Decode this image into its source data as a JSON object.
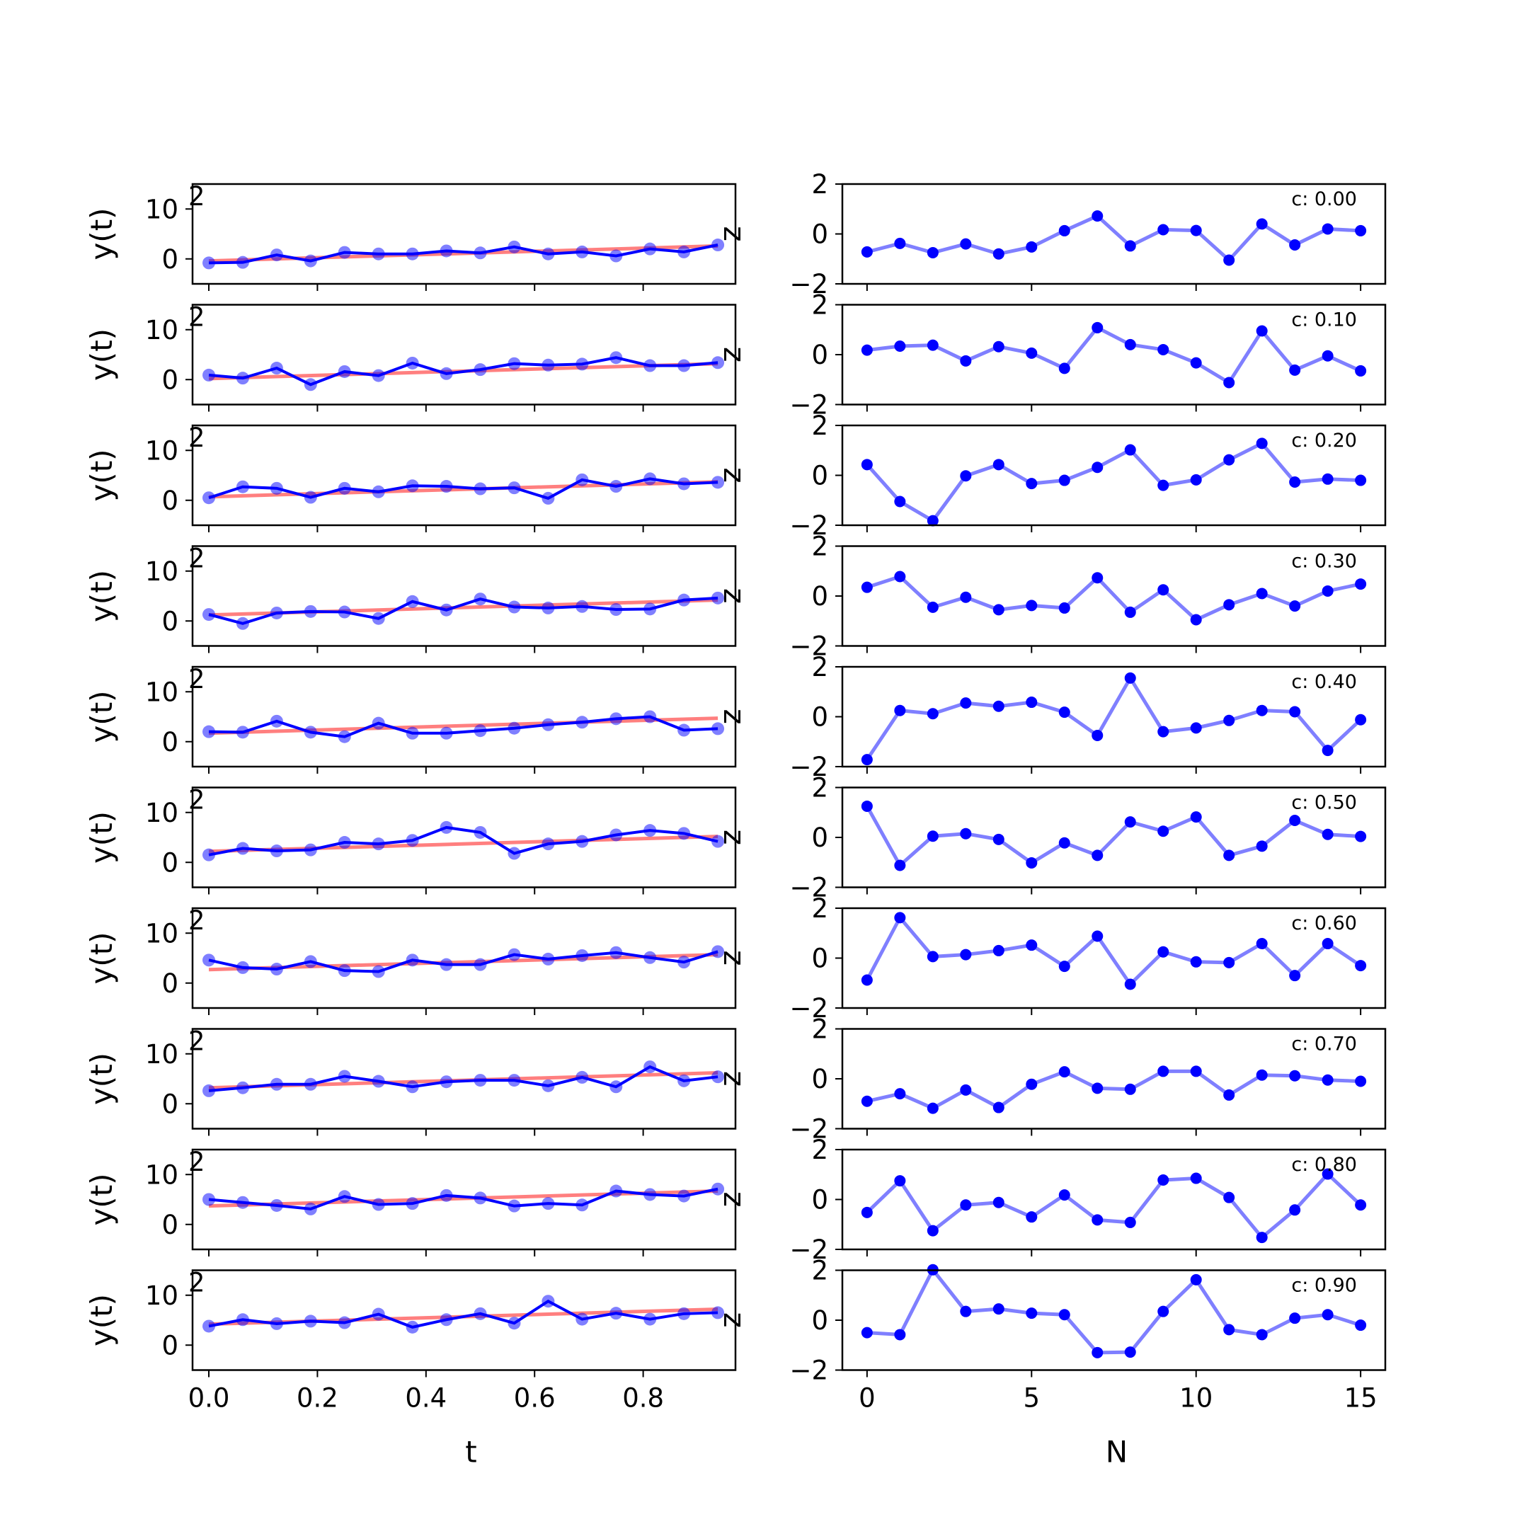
{
  "chart_data": {
    "type": "line",
    "layout": "10 rows x 2 columns of subplots",
    "colors": {
      "signal": "#0000ff",
      "trend": "#ff0000",
      "noise": "#0000ff"
    },
    "left_column": {
      "xlabel": "t",
      "ylabel": "y(t)",
      "xlim": [
        -0.03,
        0.97
      ],
      "ylim": [
        -5,
        15
      ],
      "xticks": [
        0.0,
        0.2,
        0.4,
        0.6,
        0.8
      ],
      "xtick_labels": [
        "0.0",
        "0.2",
        "0.4",
        "0.6",
        "0.8"
      ],
      "yticks": [
        0,
        10
      ],
      "ytick_labels": [
        "0",
        "10"
      ],
      "t": [
        0,
        0.0625,
        0.125,
        0.1875,
        0.25,
        0.3125,
        0.375,
        0.4375,
        0.5,
        0.5625,
        0.625,
        0.6875,
        0.75,
        0.8125,
        0.875,
        0.9375
      ],
      "right_axis_tick_label": "2",
      "series": [
        {
          "trend": [
            -0.4,
            2.6
          ],
          "values": [
            -0.8,
            -0.7,
            0.8,
            -0.4,
            1.3,
            1.0,
            1.0,
            1.6,
            1.2,
            2.4,
            1.0,
            1.4,
            0.6,
            2.0,
            1.4,
            2.8
          ]
        },
        {
          "trend": [
            0.2,
            3.2
          ],
          "values": [
            0.9,
            0.3,
            2.3,
            -1.0,
            1.6,
            0.8,
            3.3,
            1.2,
            2.0,
            3.2,
            2.9,
            3.1,
            4.4,
            2.8,
            2.8,
            3.4
          ]
        },
        {
          "trend": [
            0.7,
            3.7
          ],
          "values": [
            0.5,
            2.7,
            2.4,
            0.6,
            2.4,
            1.7,
            2.9,
            2.8,
            2.3,
            2.5,
            0.4,
            4.1,
            2.8,
            4.3,
            3.3,
            3.6
          ]
        },
        {
          "trend": [
            1.2,
            4.2
          ],
          "values": [
            1.3,
            -0.5,
            1.6,
            1.9,
            1.8,
            0.5,
            3.9,
            2.2,
            4.4,
            2.8,
            2.6,
            2.9,
            2.3,
            2.4,
            4.2,
            4.6
          ]
        },
        {
          "trend": [
            1.7,
            4.7
          ],
          "values": [
            2.0,
            1.9,
            4.1,
            1.9,
            1.0,
            3.7,
            1.7,
            1.7,
            2.2,
            2.7,
            3.4,
            3.9,
            4.6,
            5.0,
            2.3,
            2.6
          ]
        },
        {
          "trend": [
            2.2,
            5.2
          ],
          "values": [
            1.5,
            2.8,
            2.3,
            2.5,
            4.0,
            3.7,
            4.4,
            7.0,
            6.0,
            1.8,
            3.7,
            4.2,
            5.5,
            6.4,
            5.8,
            4.2
          ]
        },
        {
          "trend": [
            2.7,
            5.7
          ],
          "values": [
            4.6,
            3.1,
            2.8,
            4.3,
            2.5,
            2.3,
            4.6,
            3.7,
            3.7,
            5.7,
            4.8,
            5.5,
            6.1,
            5.1,
            4.2,
            6.3
          ]
        },
        {
          "trend": [
            3.2,
            6.2
          ],
          "values": [
            2.6,
            3.2,
            3.9,
            3.9,
            5.5,
            4.5,
            3.4,
            4.4,
            4.7,
            4.7,
            3.6,
            5.3,
            3.4,
            7.4,
            4.6,
            5.4
          ]
        },
        {
          "trend": [
            3.7,
            6.7
          ],
          "values": [
            5.0,
            4.4,
            3.8,
            3.1,
            5.6,
            4.0,
            4.2,
            5.8,
            5.3,
            3.7,
            4.2,
            3.9,
            6.7,
            6.0,
            5.7,
            7.1
          ]
        },
        {
          "trend": [
            4.2,
            7.2
          ],
          "values": [
            3.8,
            5.1,
            4.3,
            4.8,
            4.5,
            6.2,
            3.6,
            5.1,
            6.3,
            4.4,
            8.8,
            5.2,
            6.4,
            5.2,
            6.3,
            6.5
          ]
        }
      ]
    },
    "right_column": {
      "xlabel": "N",
      "ylabel": "z",
      "xlim": [
        -0.75,
        15.75
      ],
      "ylim": [
        -2,
        2
      ],
      "xticks": [
        0,
        5,
        10,
        15
      ],
      "xtick_labels": [
        "0",
        "5",
        "10",
        "15"
      ],
      "yticks": [
        -2,
        0,
        2
      ],
      "ytick_labels": [
        "−2",
        "0",
        "2"
      ],
      "n": [
        0,
        1,
        2,
        3,
        4,
        5,
        6,
        7,
        8,
        9,
        10,
        11,
        12,
        13,
        14,
        15
      ],
      "series": [
        {
          "label": "c: 0.00",
          "values": [
            -0.72,
            -0.38,
            -0.75,
            -0.4,
            -0.8,
            -0.52,
            0.13,
            0.72,
            -0.48,
            0.17,
            0.14,
            -1.05,
            0.4,
            -0.44,
            0.2,
            0.13
          ]
        },
        {
          "label": "c: 0.10",
          "values": [
            0.18,
            0.34,
            0.38,
            -0.25,
            0.32,
            0.06,
            -0.55,
            1.08,
            0.4,
            0.2,
            -0.33,
            -1.12,
            0.95,
            -0.62,
            -0.05,
            -0.65
          ]
        },
        {
          "label": "c: 0.20",
          "values": [
            0.43,
            -1.05,
            -1.82,
            -0.02,
            0.43,
            -0.33,
            -0.2,
            0.32,
            1.02,
            -0.4,
            -0.18,
            0.62,
            1.28,
            -0.27,
            -0.15,
            -0.2
          ]
        },
        {
          "label": "c: 0.30",
          "values": [
            0.35,
            0.78,
            -0.45,
            -0.05,
            -0.55,
            -0.38,
            -0.48,
            0.73,
            -0.65,
            0.25,
            -0.95,
            -0.35,
            0.1,
            -0.4,
            0.2,
            0.48
          ]
        },
        {
          "label": "c: 0.40",
          "values": [
            -1.72,
            0.25,
            0.12,
            0.55,
            0.42,
            0.58,
            0.18,
            -0.75,
            1.55,
            -0.6,
            -0.45,
            -0.15,
            0.25,
            0.2,
            -1.35,
            -0.12
          ]
        },
        {
          "label": "c: 0.50",
          "values": [
            1.25,
            -1.12,
            0.05,
            0.15,
            -0.08,
            -1.02,
            -0.22,
            -0.72,
            0.62,
            0.25,
            0.82,
            -0.72,
            -0.35,
            0.68,
            0.12,
            0.04
          ]
        },
        {
          "label": "c: 0.60",
          "values": [
            -0.88,
            1.62,
            0.06,
            0.14,
            0.3,
            0.52,
            -0.33,
            0.88,
            -1.05,
            0.25,
            -0.15,
            -0.18,
            0.58,
            -0.7,
            0.58,
            -0.3
          ]
        },
        {
          "label": "c: 0.70",
          "values": [
            -0.9,
            -0.6,
            -1.18,
            -0.45,
            -1.15,
            -0.22,
            0.28,
            -0.38,
            -0.42,
            0.3,
            0.3,
            -0.65,
            0.15,
            0.12,
            -0.05,
            -0.1
          ]
        },
        {
          "label": "c: 0.80",
          "values": [
            -0.52,
            0.75,
            -1.25,
            -0.22,
            -0.12,
            -0.7,
            0.18,
            -0.82,
            -0.92,
            0.78,
            0.85,
            0.08,
            -1.52,
            -0.42,
            1.02,
            -0.22
          ]
        },
        {
          "label": "c: 0.90",
          "values": [
            -0.5,
            -0.58,
            2.02,
            0.35,
            0.45,
            0.28,
            0.22,
            -1.3,
            -1.28,
            0.35,
            1.62,
            -0.38,
            -0.58,
            0.08,
            0.22,
            -0.2
          ]
        }
      ]
    }
  }
}
